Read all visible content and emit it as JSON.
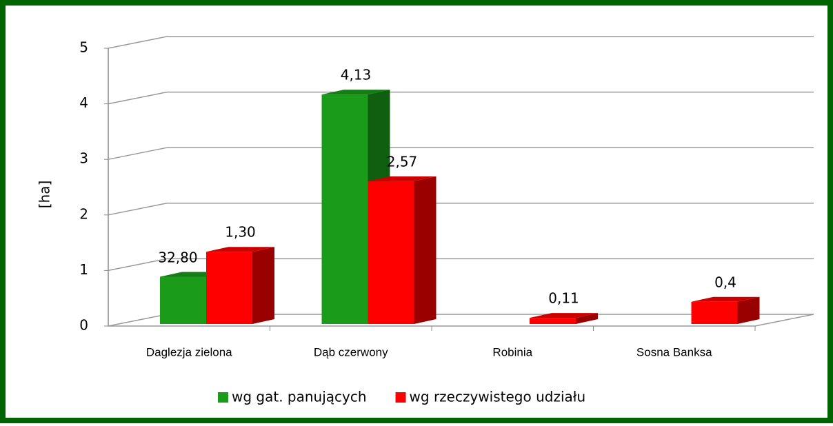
{
  "chart_data": {
    "type": "bar3d",
    "y_label": "[ha]",
    "categories": [
      "Daglezja zielona",
      "Dąb czerwony",
      "Robinia",
      "Sosna Banksa"
    ],
    "series": [
      {
        "name": "wg gat. panujących",
        "color": "#1a9c1a",
        "values": [
          0.85,
          4.13,
          null,
          null
        ],
        "value_labels": [
          null,
          "4,13",
          null,
          null
        ]
      },
      {
        "name": "wg rzeczywistego udziału",
        "color": "#ff0000",
        "values": [
          1.3,
          2.57,
          0.11,
          0.4
        ],
        "value_labels": [
          "1,30",
          "2,57",
          "0,11",
          "0,4"
        ]
      }
    ],
    "annotations": [
      "32,80"
    ],
    "ylim": [
      0,
      5
    ],
    "yticks": [
      0,
      1,
      2,
      3,
      4,
      5
    ],
    "grid": true,
    "legend": "bottom"
  }
}
